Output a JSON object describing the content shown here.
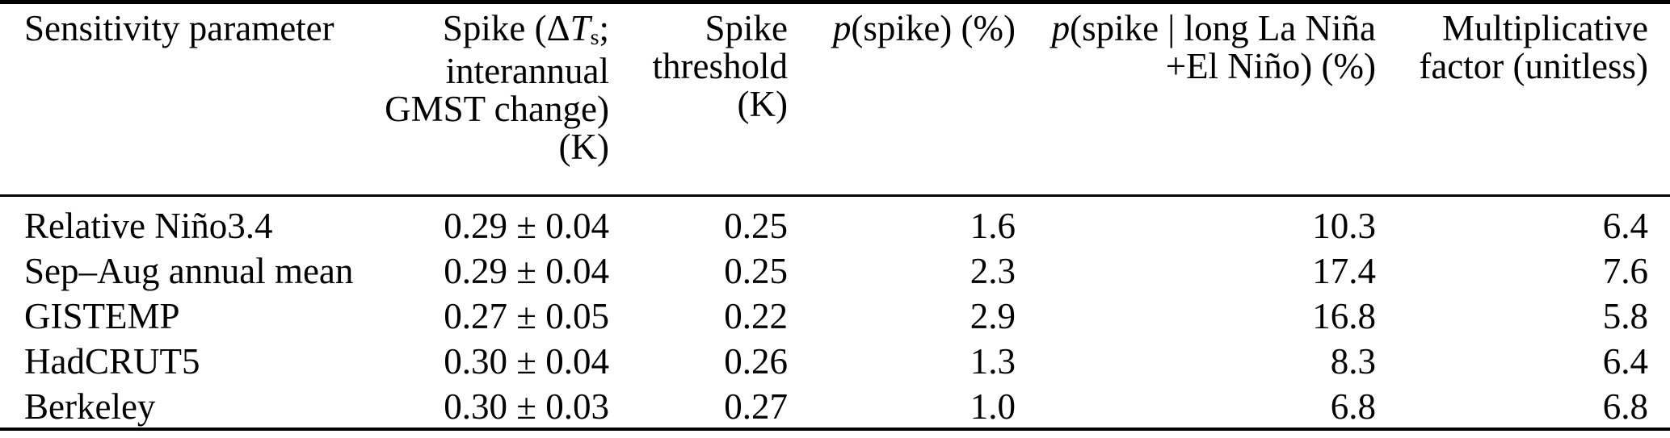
{
  "page": {
    "background_color": "#ffffff",
    "text_color": "#000000"
  },
  "table": {
    "header": {
      "col1": "Sensitivity parameter",
      "col2": {
        "l1_pre": "Spike (Δ",
        "l1_var": "T",
        "l1_sub": "s",
        "l1_post": ";",
        "l2": "interannual",
        "l3": "GMST change)",
        "l4": "(K)"
      },
      "col3": "Spike\nthreshold\n(K)",
      "col4": {
        "p": "p",
        "rest": "(spike) (%)"
      },
      "col5": {
        "p": "p",
        "l1": "(spike | long La Niña",
        "l2": "+El Niño) (%)"
      },
      "col6": "Multiplicative\nfactor (unitless)"
    },
    "rows": [
      {
        "param": "Relative Niño3.4",
        "spike": "0.29 ± 0.04",
        "threshold": "0.25",
        "p_spike": "1.6",
        "p_cond": "10.3",
        "factor": "6.4"
      },
      {
        "param": "Sep–Aug annual mean",
        "spike": "0.29 ± 0.04",
        "threshold": "0.25",
        "p_spike": "2.3",
        "p_cond": "17.4",
        "factor": "7.6"
      },
      {
        "param": "GISTEMP",
        "spike": "0.27 ± 0.05",
        "threshold": "0.22",
        "p_spike": "2.9",
        "p_cond": "16.8",
        "factor": "5.8"
      },
      {
        "param": "HadCRUT5",
        "spike": "0.30 ± 0.04",
        "threshold": "0.26",
        "p_spike": "1.3",
        "p_cond": "8.3",
        "factor": "6.4"
      },
      {
        "param": "Berkeley",
        "spike": "0.30 ± 0.03",
        "threshold": "0.27",
        "p_spike": "1.0",
        "p_cond": "6.8",
        "factor": "6.8"
      }
    ]
  }
}
